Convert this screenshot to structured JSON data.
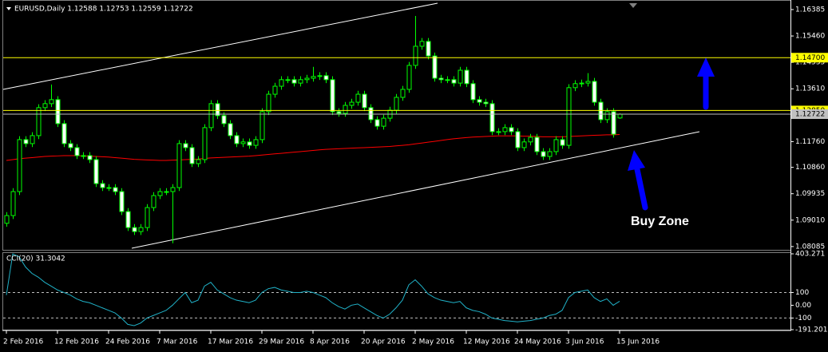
{
  "chart_data": [
    {
      "type": "candlestick",
      "title": "EURUSD,Daily 1.12588 1.12753 1.12559 1.12722",
      "categories": [
        "2 Feb 2016",
        null,
        null,
        null,
        null,
        null,
        null,
        null,
        "12 Feb 2016",
        null,
        null,
        null,
        null,
        null,
        null,
        null,
        "24 Feb 2016",
        null,
        null,
        null,
        null,
        null,
        null,
        null,
        "7 Mar 2016",
        null,
        null,
        null,
        null,
        null,
        null,
        null,
        "17 Mar 2016",
        null,
        null,
        null,
        null,
        null,
        null,
        null,
        "29 Mar 2016",
        null,
        null,
        null,
        null,
        null,
        null,
        null,
        "8 Apr 2016",
        null,
        null,
        null,
        null,
        null,
        null,
        null,
        "20 Apr 2016",
        null,
        null,
        null,
        null,
        null,
        null,
        null,
        "2 May 2016",
        null,
        null,
        null,
        null,
        null,
        null,
        null,
        "12 May 2016",
        null,
        null,
        null,
        null,
        null,
        null,
        null,
        "24 May 2016",
        null,
        null,
        null,
        null,
        null,
        null,
        null,
        "3 Jun 2016",
        null,
        null,
        null,
        null,
        null,
        null,
        null,
        "15 Jun 2016"
      ],
      "open": [
        1.089,
        1.0917,
        1.1001,
        1.1183,
        1.1169,
        1.1197,
        1.1295,
        1.1309,
        1.1323,
        1.1239,
        1.1169,
        1.1155,
        1.1127,
        1.1127,
        1.1113,
        1.1029,
        1.1015,
        1.1015,
        1.1001,
        1.0931,
        1.0875,
        1.0861,
        1.0875,
        1.0945,
        1.0987,
        1.1001,
        1.1001,
        1.1015,
        1.1169,
        1.1155,
        1.1099,
        1.1113,
        1.1225,
        1.1309,
        1.1267,
        1.1239,
        1.1197,
        1.1169,
        1.1175,
        1.1163,
        1.1183,
        1.1281,
        1.1342,
        1.137,
        1.1393,
        1.1393,
        1.1381,
        1.1393,
        1.1398,
        1.1404,
        1.1407,
        1.1393,
        1.1281,
        1.1275,
        1.1303,
        1.1314,
        1.1342,
        1.1295,
        1.1253,
        1.123,
        1.1258,
        1.1286,
        1.1331,
        1.1359,
        1.1443,
        1.151,
        1.1527,
        1.1476,
        1.1398,
        1.1393,
        1.1393,
        1.1381,
        1.1426,
        1.1379,
        1.1323,
        1.1314,
        1.1309,
        1.1211,
        1.1211,
        1.1225,
        1.1211,
        1.1155,
        1.1175,
        1.1191,
        1.1141,
        1.1124,
        1.1141,
        1.1183,
        1.1163,
        1.1365,
        1.1379,
        1.1381,
        1.1387,
        1.1314,
        1.1253,
        1.1281,
        1.12588
      ],
      "high": [
        1.0929,
        1.1013,
        1.1195,
        1.1195,
        1.1209,
        1.1307,
        1.1321,
        1.1376,
        1.1335,
        1.1251,
        1.1181,
        1.1167,
        1.1139,
        1.1139,
        1.1125,
        1.1041,
        1.1027,
        1.1027,
        1.1013,
        1.0943,
        1.0887,
        1.0887,
        1.0957,
        1.0999,
        1.1013,
        1.1013,
        1.1027,
        1.1181,
        1.1181,
        1.1167,
        1.1125,
        1.1237,
        1.1321,
        1.1321,
        1.1279,
        1.1251,
        1.1209,
        1.1187,
        1.1187,
        1.1195,
        1.1293,
        1.1354,
        1.1382,
        1.1405,
        1.1405,
        1.1405,
        1.1405,
        1.141,
        1.1438,
        1.1419,
        1.1419,
        1.1405,
        1.1293,
        1.1315,
        1.1326,
        1.1354,
        1.1354,
        1.1307,
        1.1265,
        1.127,
        1.1298,
        1.1343,
        1.1371,
        1.1455,
        1.1616,
        1.1539,
        1.1539,
        1.1488,
        1.141,
        1.1405,
        1.1405,
        1.1438,
        1.1438,
        1.1391,
        1.1335,
        1.1326,
        1.1321,
        1.1223,
        1.1237,
        1.1237,
        1.1223,
        1.1187,
        1.1203,
        1.1203,
        1.1153,
        1.1153,
        1.1195,
        1.1195,
        1.1377,
        1.1391,
        1.1393,
        1.1416,
        1.1399,
        1.1326,
        1.1293,
        1.1293,
        1.12753
      ],
      "low": [
        1.0878,
        1.0905,
        1.0989,
        1.1157,
        1.1157,
        1.1185,
        1.1283,
        1.1297,
        1.1227,
        1.1157,
        1.1143,
        1.1115,
        1.1115,
        1.1101,
        1.1017,
        1.1003,
        1.1003,
        1.0989,
        1.0919,
        1.0863,
        1.0849,
        1.0849,
        1.0863,
        1.0933,
        1.0975,
        1.0989,
        1.082,
        1.1003,
        1.1143,
        1.1087,
        1.1087,
        1.1101,
        1.1213,
        1.1255,
        1.1227,
        1.1185,
        1.1157,
        1.1157,
        1.1151,
        1.1151,
        1.1171,
        1.1269,
        1.133,
        1.1358,
        1.1381,
        1.1369,
        1.1369,
        1.1381,
        1.1386,
        1.1392,
        1.1381,
        1.1269,
        1.1263,
        1.1263,
        1.1291,
        1.1302,
        1.1283,
        1.1241,
        1.1218,
        1.1218,
        1.1246,
        1.1274,
        1.1319,
        1.1347,
        1.1431,
        1.1498,
        1.1464,
        1.1386,
        1.1381,
        1.1381,
        1.1369,
        1.1369,
        1.1367,
        1.1311,
        1.1302,
        1.1297,
        1.1199,
        1.1199,
        1.1199,
        1.1199,
        1.1143,
        1.1143,
        1.1163,
        1.1129,
        1.1112,
        1.1112,
        1.1129,
        1.1151,
        1.1151,
        1.1353,
        1.1367,
        1.1369,
        1.1302,
        1.1241,
        1.1241,
        1.119,
        1.12559
      ],
      "close": [
        1.0917,
        1.1001,
        1.1183,
        1.1169,
        1.1197,
        1.1295,
        1.1309,
        1.1323,
        1.1239,
        1.1169,
        1.1155,
        1.1127,
        1.1127,
        1.1113,
        1.1029,
        1.1015,
        1.1015,
        1.1001,
        1.0931,
        1.0875,
        1.0861,
        1.0875,
        1.0945,
        1.0987,
        1.1001,
        1.1001,
        1.1015,
        1.1169,
        1.1155,
        1.1099,
        1.1113,
        1.1225,
        1.1309,
        1.1267,
        1.1239,
        1.1197,
        1.1169,
        1.1175,
        1.1163,
        1.1183,
        1.1281,
        1.1342,
        1.137,
        1.1393,
        1.1393,
        1.1381,
        1.1393,
        1.1398,
        1.1404,
        1.1407,
        1.1393,
        1.1281,
        1.1275,
        1.1303,
        1.1314,
        1.1342,
        1.1295,
        1.1253,
        1.123,
        1.1258,
        1.1286,
        1.1331,
        1.1359,
        1.1443,
        1.151,
        1.1527,
        1.1476,
        1.1398,
        1.1393,
        1.1393,
        1.1381,
        1.1426,
        1.1379,
        1.1323,
        1.1314,
        1.1309,
        1.1211,
        1.1211,
        1.1225,
        1.1211,
        1.1155,
        1.1175,
        1.1191,
        1.1141,
        1.1124,
        1.1141,
        1.1183,
        1.1163,
        1.1365,
        1.1379,
        1.1381,
        1.1387,
        1.1314,
        1.1253,
        1.1281,
        1.1202,
        1.12722
      ],
      "color": "#00ff00",
      "ma": {
        "color": "#ff0000",
        "values": [
          1.111,
          1.1113,
          1.1116,
          1.1118,
          1.112,
          1.1122,
          1.1124,
          1.1125,
          1.1126,
          1.1127,
          1.1127,
          1.1127,
          1.1126,
          1.1125,
          1.1124,
          1.1123,
          1.1122,
          1.112,
          1.1118,
          1.1116,
          1.1114,
          1.1113,
          1.1112,
          1.1111,
          1.111,
          1.111,
          1.1111,
          1.1112,
          1.1113,
          1.1114,
          1.1115,
          1.1117,
          1.1119,
          1.112,
          1.1121,
          1.1122,
          1.1123,
          1.1124,
          1.1125,
          1.1127,
          1.1129,
          1.1131,
          1.1133,
          1.1135,
          1.1137,
          1.1139,
          1.1141,
          1.1143,
          1.1145,
          1.1147,
          1.1149,
          1.115,
          1.1151,
          1.1152,
          1.1153,
          1.1154,
          1.1155,
          1.1156,
          1.1157,
          1.1158,
          1.1159,
          1.1161,
          1.1163,
          1.1165,
          1.1168,
          1.1171,
          1.1174,
          1.1177,
          1.118,
          1.1183,
          1.1186,
          1.1188,
          1.119,
          1.1192,
          1.1193,
          1.1194,
          1.1195,
          1.1196,
          1.1196,
          1.1196,
          1.1196,
          1.1195,
          1.1195,
          1.1194,
          1.1193,
          1.1193,
          1.1193,
          1.1193,
          1.1194,
          1.1195,
          1.1196,
          1.1197,
          1.1198,
          1.1199,
          1.12,
          1.12,
          1.1201
        ]
      },
      "ylim": [
        1.0797,
        1.1672
      ],
      "yticks": [
        1.16385,
        {
          "value": 1.1546,
          "label": "1.15460"
        },
        1.14535,
        {
          "value": 1.1361,
          "label": "1.13610"
        },
        {
          "value": 1.1176,
          "label": "1.11760"
        },
        {
          "value": 1.1086,
          "label": "1.10860"
        },
        1.09935,
        {
          "value": 1.0901,
          "label": "1.09010"
        },
        1.08085
      ],
      "lines": [
        {
          "value": 1.147,
          "label": "1.14700",
          "color": "#ffff00"
        },
        {
          "value": 1.1285,
          "label": "1.12850",
          "color": "#ffff00"
        }
      ],
      "last_price": {
        "value": 1.12722,
        "label": "1.12722",
        "color": "#c0c0c0"
      },
      "annotation": "Buy Zone"
    },
    {
      "type": "line",
      "title": "CCI(20) 31.3042",
      "series": [
        {
          "color": "#20b2c8",
          "values": [
            80,
            403,
            380,
            300,
            250,
            220,
            180,
            150,
            120,
            100,
            80,
            50,
            30,
            20,
            0,
            -20,
            -40,
            -60,
            -100,
            -150,
            -160,
            -140,
            -100,
            -80,
            -60,
            -40,
            0,
            50,
            100,
            20,
            40,
            150,
            180,
            120,
            90,
            60,
            40,
            30,
            20,
            40,
            100,
            130,
            140,
            120,
            110,
            100,
            100,
            110,
            100,
            80,
            60,
            20,
            -10,
            -30,
            0,
            10,
            -20,
            -50,
            -80,
            -100,
            -70,
            -20,
            40,
            160,
            200,
            150,
            90,
            60,
            40,
            30,
            20,
            30,
            -20,
            -40,
            -50,
            -70,
            -100,
            -110,
            -120,
            -125,
            -130,
            -125,
            -120,
            -110,
            -100,
            -80,
            -70,
            -40,
            60,
            100,
            110,
            120,
            60,
            30,
            50,
            0,
            31.3042
          ]
        }
      ],
      "ylim": [
        -191.2012,
        403.271
      ],
      "yticks": [
        403.271,
        100,
        {
          "value": 0,
          "label": "0.00"
        },
        -100,
        -191.2012
      ],
      "levels": [
        100,
        -100
      ]
    }
  ]
}
